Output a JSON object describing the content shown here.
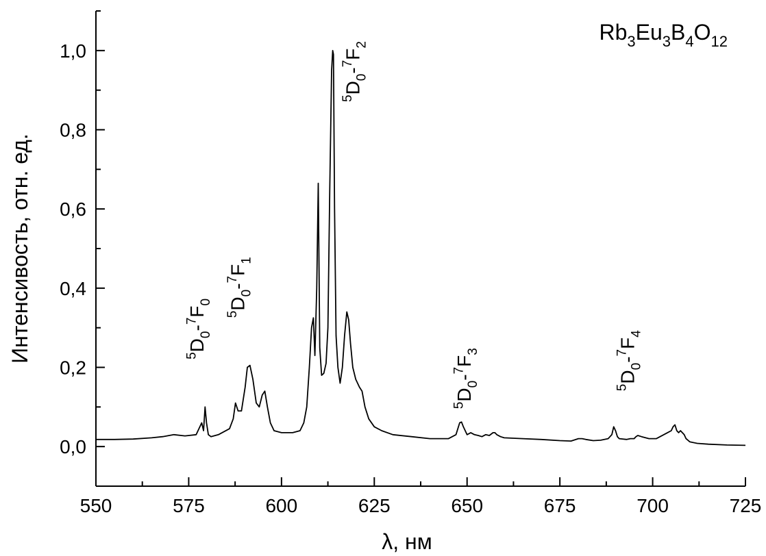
{
  "chart_data": {
    "type": "line",
    "title_parts": [
      {
        "t": "Rb",
        "s": "n"
      },
      {
        "t": "3",
        "s": "sub"
      },
      {
        "t": "Eu",
        "s": "n"
      },
      {
        "t": "3",
        "s": "sub"
      },
      {
        "t": "B",
        "s": "n"
      },
      {
        "t": "4",
        "s": "sub"
      },
      {
        "t": "O",
        "s": "n"
      },
      {
        "t": "12",
        "s": "sub"
      }
    ],
    "xlabel": "λ, нм",
    "ylabel": "Интенсивость, отн. ед.",
    "xlim": [
      550,
      725
    ],
    "ylim": [
      -0.1,
      1.1
    ],
    "x_ticks": [
      550,
      575,
      600,
      625,
      650,
      675,
      700,
      725
    ],
    "y_ticks": [
      0.0,
      0.2,
      0.4,
      0.6,
      0.8,
      1.0
    ],
    "y_tick_labels": [
      "0,0",
      "0,2",
      "0,4",
      "0,6",
      "0,8",
      "1,0"
    ],
    "grid": false,
    "line_color": "#000000",
    "series": [
      {
        "x": [
          550,
          555,
          560,
          565,
          568,
          571,
          574,
          577,
          578.5,
          579,
          579.4,
          579.8,
          580.3,
          581,
          583,
          586,
          587,
          587.6,
          588.3,
          589.2,
          590.2,
          590.8,
          591.5,
          592.3,
          593.2,
          594,
          594.8,
          595.5,
          596.2,
          597,
          598,
          600,
          603,
          605,
          606,
          606.8,
          607.5,
          608.1,
          608.6,
          609,
          609.5,
          609.9,
          610.3,
          610.8,
          611.4,
          612,
          612.5,
          613,
          613.5,
          613.8,
          614,
          614.3,
          614.7,
          615.2,
          615.8,
          616.4,
          617,
          617.6,
          618.1,
          618.6,
          619.2,
          620,
          621,
          621.7,
          622.5,
          623.5,
          625,
          627,
          630,
          635,
          640,
          645,
          647,
          648,
          648.5,
          649,
          649.5,
          650,
          651,
          652,
          653,
          654,
          655,
          656,
          657,
          657.5,
          658,
          659,
          660,
          665,
          670,
          675,
          678,
          680,
          681,
          682,
          684,
          686,
          688,
          689,
          689.5,
          690,
          690.5,
          691,
          693,
          694,
          695,
          695.5,
          696,
          697,
          699,
          701,
          702,
          703,
          704,
          705,
          705.5,
          706,
          706.5,
          707,
          707.5,
          708,
          708.5,
          709,
          710,
          712,
          715,
          720,
          725
        ],
        "y": [
          0.018,
          0.018,
          0.019,
          0.022,
          0.025,
          0.03,
          0.027,
          0.03,
          0.06,
          0.04,
          0.1,
          0.06,
          0.03,
          0.025,
          0.03,
          0.045,
          0.07,
          0.11,
          0.09,
          0.09,
          0.15,
          0.2,
          0.205,
          0.17,
          0.11,
          0.1,
          0.13,
          0.14,
          0.1,
          0.06,
          0.04,
          0.035,
          0.035,
          0.04,
          0.06,
          0.1,
          0.2,
          0.3,
          0.325,
          0.23,
          0.4,
          0.665,
          0.25,
          0.18,
          0.185,
          0.21,
          0.3,
          0.65,
          0.95,
          1.0,
          0.99,
          0.6,
          0.28,
          0.2,
          0.16,
          0.2,
          0.28,
          0.34,
          0.32,
          0.26,
          0.2,
          0.17,
          0.15,
          0.14,
          0.1,
          0.07,
          0.05,
          0.04,
          0.03,
          0.025,
          0.02,
          0.02,
          0.03,
          0.06,
          0.062,
          0.05,
          0.04,
          0.03,
          0.035,
          0.03,
          0.028,
          0.025,
          0.03,
          0.028,
          0.035,
          0.035,
          0.03,
          0.025,
          0.022,
          0.02,
          0.018,
          0.015,
          0.014,
          0.02,
          0.02,
          0.018,
          0.015,
          0.016,
          0.02,
          0.03,
          0.05,
          0.04,
          0.025,
          0.02,
          0.018,
          0.02,
          0.02,
          0.025,
          0.028,
          0.025,
          0.02,
          0.02,
          0.025,
          0.03,
          0.035,
          0.04,
          0.05,
          0.055,
          0.04,
          0.035,
          0.04,
          0.035,
          0.03,
          0.02,
          0.012,
          0.008,
          0.006,
          0.004,
          0.003
        ]
      }
    ],
    "annotations": [
      {
        "x": 579,
        "y": 0.22,
        "parts": [
          {
            "t": "5",
            "s": "sup"
          },
          {
            "t": "D",
            "s": "n"
          },
          {
            "t": "0",
            "s": "sub"
          },
          {
            "t": "-",
            "s": "n"
          },
          {
            "t": "7",
            "s": "sup"
          },
          {
            "t": "F",
            "s": "n"
          },
          {
            "t": "0",
            "s": "sub"
          }
        ]
      },
      {
        "x": 590,
        "y": 0.325,
        "parts": [
          {
            "t": "5",
            "s": "sup"
          },
          {
            "t": "D",
            "s": "n"
          },
          {
            "t": "0",
            "s": "sub"
          },
          {
            "t": "-",
            "s": "n"
          },
          {
            "t": "7",
            "s": "sup"
          },
          {
            "t": "F",
            "s": "n"
          },
          {
            "t": "1",
            "s": "sub"
          }
        ]
      },
      {
        "x": 621,
        "y": 0.87,
        "parts": [
          {
            "t": "5",
            "s": "sup"
          },
          {
            "t": "D",
            "s": "n"
          },
          {
            "t": "0",
            "s": "sub"
          },
          {
            "t": "-",
            "s": "n"
          },
          {
            "t": "7",
            "s": "sup"
          },
          {
            "t": "F",
            "s": "n"
          },
          {
            "t": "2",
            "s": "sub"
          }
        ]
      },
      {
        "x": 651,
        "y": 0.095,
        "parts": [
          {
            "t": "5",
            "s": "sup"
          },
          {
            "t": "D",
            "s": "n"
          },
          {
            "t": "0",
            "s": "sub"
          },
          {
            "t": "-",
            "s": "n"
          },
          {
            "t": "7",
            "s": "sup"
          },
          {
            "t": "F",
            "s": "n"
          },
          {
            "t": "3",
            "s": "sub"
          }
        ]
      },
      {
        "x": 695,
        "y": 0.14,
        "parts": [
          {
            "t": "5",
            "s": "sup"
          },
          {
            "t": "D",
            "s": "n"
          },
          {
            "t": "0",
            "s": "sub"
          },
          {
            "t": "-",
            "s": "n"
          },
          {
            "t": "7",
            "s": "sup"
          },
          {
            "t": "F",
            "s": "n"
          },
          {
            "t": "4",
            "s": "sub"
          }
        ]
      }
    ]
  }
}
